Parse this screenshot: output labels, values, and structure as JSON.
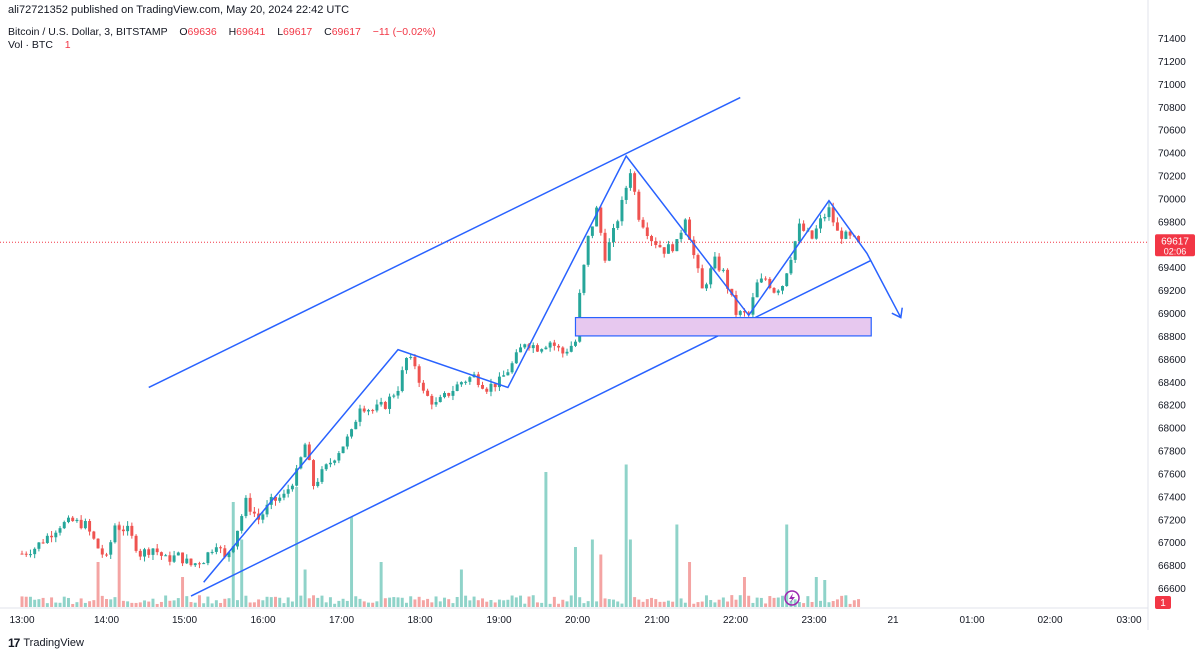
{
  "header": {
    "published": "ali72721352 published on TradingView.com, May 20, 2024 22:42 UTC"
  },
  "legend": {
    "symbol": "Bitcoin / U.S. Dollar, 3, BITSTAMP",
    "o_label": "O",
    "o_value": "69636",
    "h_label": "H",
    "h_value": "69641",
    "l_label": "L",
    "l_value": "69617",
    "c_label": "C",
    "c_value": "69617",
    "change": "−11 (−0.02%)",
    "vol_label": "Vol · BTC",
    "vol_value": "1"
  },
  "price_axis": {
    "ticks": [
      "71400",
      "71200",
      "71000",
      "70800",
      "70600",
      "70400",
      "70200",
      "70000",
      "69800",
      "69600",
      "69400",
      "69200",
      "69000",
      "68800",
      "68600",
      "68400",
      "68200",
      "68000",
      "67800",
      "67600",
      "67400",
      "67200",
      "67000",
      "66800",
      "66600"
    ],
    "last_price_label": "69617",
    "countdown": "02:06",
    "volume_label": "1"
  },
  "time_axis": {
    "ticks": [
      "13:00",
      "14:00",
      "15:00",
      "16:00",
      "17:00",
      "18:00",
      "19:00",
      "20:00",
      "21:00",
      "22:00",
      "23:00",
      "21",
      "01:00",
      "02:00",
      "03:00"
    ]
  },
  "footer": {
    "logo": "17",
    "brand": "TradingView"
  },
  "colors": {
    "up": "#26a69a",
    "down": "#ef5350",
    "vol_up": "#8fd3c9",
    "vol_down": "#f4a4a3",
    "drawing": "#2962ff",
    "zone_fill": "#e7c8ef",
    "last_price": "#f23645"
  },
  "chart_data": {
    "type": "candlestick",
    "symbol": "Bitcoin / U.S. Dollar, 3, BITSTAMP",
    "ylim": [
      66460,
      71480
    ],
    "x_label_times": [
      "13:00",
      "14:00",
      "15:00",
      "16:00",
      "17:00",
      "18:00",
      "19:00",
      "20:00",
      "21:00",
      "22:00",
      "23:00",
      "21",
      "01:00",
      "02:00",
      "03:00"
    ],
    "last_price": 69617,
    "close_path": [
      [
        0,
        66900
      ],
      [
        3,
        66950
      ],
      [
        6,
        67050
      ],
      [
        9,
        67150
      ],
      [
        12,
        67180
      ],
      [
        15,
        67150
      ],
      [
        18,
        66950
      ],
      [
        20,
        66850
      ],
      [
        22,
        67150
      ],
      [
        25,
        67100
      ],
      [
        28,
        66900
      ],
      [
        31,
        66950
      ],
      [
        34,
        66850
      ],
      [
        37,
        66880
      ],
      [
        40,
        66800
      ],
      [
        43,
        66850
      ],
      [
        46,
        67000
      ],
      [
        48,
        66850
      ],
      [
        50,
        67000
      ],
      [
        53,
        67350
      ],
      [
        56,
        67200
      ],
      [
        59,
        67350
      ],
      [
        62,
        67400
      ],
      [
        65,
        67600
      ],
      [
        67,
        67850
      ],
      [
        69,
        67500
      ],
      [
        72,
        67650
      ],
      [
        75,
        67800
      ],
      [
        78,
        67950
      ],
      [
        80,
        68200
      ],
      [
        83,
        68150
      ],
      [
        86,
        68200
      ],
      [
        89,
        68350
      ],
      [
        91,
        68600
      ],
      [
        93,
        68550
      ],
      [
        95,
        68300
      ],
      [
        98,
        68200
      ],
      [
        101,
        68300
      ],
      [
        104,
        68400
      ],
      [
        107,
        68450
      ],
      [
        110,
        68350
      ],
      [
        113,
        68400
      ],
      [
        116,
        68550
      ],
      [
        119,
        68750
      ],
      [
        122,
        68700
      ],
      [
        125,
        68750
      ],
      [
        128,
        68650
      ],
      [
        131,
        68750
      ],
      [
        132,
        69150
      ],
      [
        134,
        69650
      ],
      [
        136,
        69900
      ],
      [
        138,
        69500
      ],
      [
        140,
        69700
      ],
      [
        142,
        69950
      ],
      [
        144,
        70250
      ],
      [
        146,
        69850
      ],
      [
        149,
        69650
      ],
      [
        152,
        69550
      ],
      [
        155,
        69600
      ],
      [
        157,
        69850
      ],
      [
        159,
        69500
      ],
      [
        161,
        69200
      ],
      [
        164,
        69450
      ],
      [
        166,
        69350
      ],
      [
        169,
        69000
      ],
      [
        172,
        68980
      ],
      [
        174,
        69250
      ],
      [
        176,
        69300
      ],
      [
        178,
        69200
      ],
      [
        180,
        69250
      ],
      [
        182,
        69500
      ],
      [
        184,
        69750
      ],
      [
        187,
        69650
      ],
      [
        189,
        69800
      ],
      [
        191,
        69900
      ],
      [
        193,
        69700
      ],
      [
        196,
        69650
      ],
      [
        198,
        69617
      ]
    ],
    "volume_spikes": [
      [
        18,
        0.3
      ],
      [
        23,
        0.55
      ],
      [
        38,
        0.2
      ],
      [
        50,
        0.7
      ],
      [
        52,
        0.45
      ],
      [
        65,
        0.8
      ],
      [
        67,
        0.25
      ],
      [
        78,
        0.6
      ],
      [
        85,
        0.3
      ],
      [
        104,
        0.25
      ],
      [
        124,
        0.9
      ],
      [
        131,
        0.4
      ],
      [
        135,
        0.45
      ],
      [
        137,
        0.35
      ],
      [
        143,
        0.95
      ],
      [
        144,
        0.45
      ],
      [
        155,
        0.55
      ],
      [
        158,
        0.3
      ],
      [
        171,
        0.2
      ],
      [
        181,
        0.55
      ],
      [
        188,
        0.2
      ],
      [
        190,
        0.18
      ]
    ],
    "annotations": [
      {
        "type": "channel-upper",
        "from": [
          30,
          68350
        ],
        "to": [
          170,
          70880
        ]
      },
      {
        "type": "channel-lower",
        "from": [
          40,
          66530
        ],
        "to": [
          201,
          69460
        ]
      },
      {
        "type": "pattern-path",
        "points": [
          [
            43,
            66650
          ],
          [
            89,
            68680
          ],
          [
            115,
            68350
          ],
          [
            143,
            70370
          ],
          [
            172,
            68980
          ],
          [
            191,
            69980
          ],
          [
            200,
            69520
          ],
          [
            208,
            68960
          ]
        ]
      },
      {
        "type": "support-zone",
        "y_top": 68960,
        "y_bottom": 68800,
        "x_from": 131,
        "x_to": 201
      }
    ]
  }
}
